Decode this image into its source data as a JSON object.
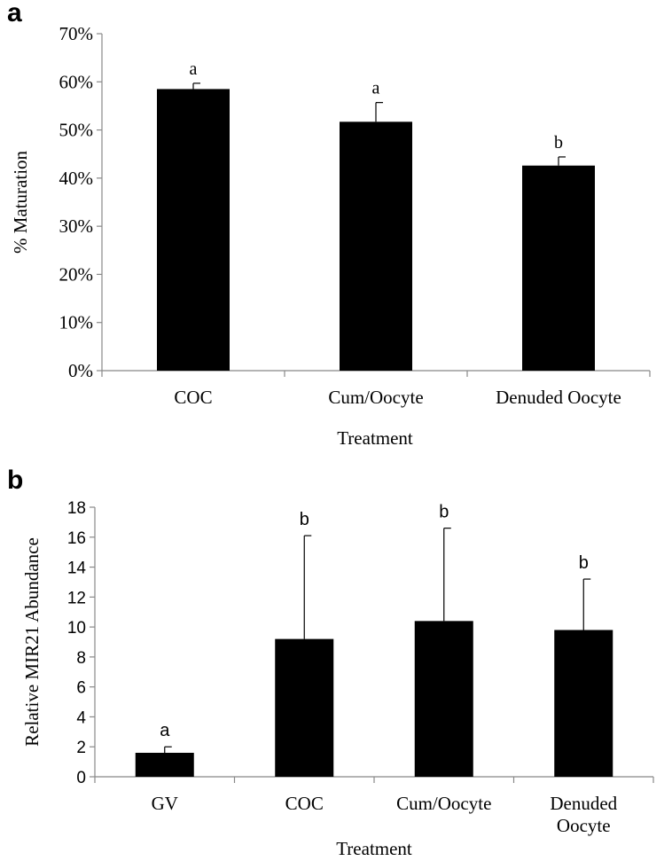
{
  "chart_data": [
    {
      "panel": "a",
      "type": "bar",
      "xlabel": "Treatment",
      "ylabel": "% Maturation",
      "ylim": [
        0,
        70
      ],
      "yticks": [
        "0%",
        "10%",
        "20%",
        "30%",
        "40%",
        "50%",
        "60%",
        "70%"
      ],
      "categories": [
        "COC",
        "Cum/Oocyte",
        "Denuded Oocyte"
      ],
      "values": [
        58.5,
        51.7,
        42.6
      ],
      "errors": [
        1.2,
        4.0,
        1.8
      ],
      "significance": [
        "a",
        "a",
        "b"
      ],
      "bar_color": "#000000",
      "grid": false
    },
    {
      "panel": "b",
      "type": "bar",
      "xlabel": "Treatment",
      "ylabel": "Relative MIR21 Abundance",
      "ylim": [
        0,
        18
      ],
      "yticks": [
        "0",
        "2",
        "4",
        "6",
        "8",
        "10",
        "12",
        "14",
        "16",
        "18"
      ],
      "categories": [
        "GV",
        "COC",
        "Cum/Oocyte",
        "Denuded Oocyte"
      ],
      "category_lines": [
        [
          "GV"
        ],
        [
          "COC"
        ],
        [
          "Cum/Oocyte"
        ],
        [
          "Denuded",
          "Oocyte"
        ]
      ],
      "values": [
        1.6,
        9.2,
        10.4,
        9.8
      ],
      "errors": [
        0.4,
        6.9,
        6.2,
        3.4
      ],
      "significance": [
        "a",
        "b",
        "b",
        "b"
      ],
      "bar_color": "#000000",
      "grid": false
    }
  ]
}
